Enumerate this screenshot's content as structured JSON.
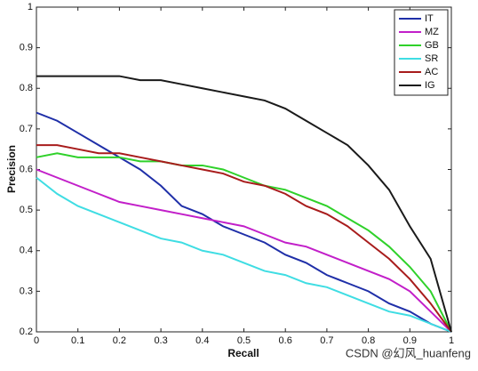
{
  "chart_data": {
    "type": "line",
    "x_label": "Recall",
    "y_label": "Precision",
    "x": [
      0,
      0.05,
      0.1,
      0.15,
      0.2,
      0.25,
      0.3,
      0.35,
      0.4,
      0.45,
      0.5,
      0.55,
      0.6,
      0.65,
      0.7,
      0.75,
      0.8,
      0.85,
      0.9,
      0.95,
      1
    ],
    "series": [
      {
        "name": "IT",
        "color": "#1f2fa8",
        "values": [
          0.74,
          0.72,
          0.69,
          0.66,
          0.63,
          0.6,
          0.56,
          0.51,
          0.49,
          0.46,
          0.44,
          0.42,
          0.39,
          0.37,
          0.34,
          0.32,
          0.3,
          0.27,
          0.25,
          0.22,
          0.2
        ]
      },
      {
        "name": "MZ",
        "color": "#c21fc9",
        "values": [
          0.6,
          0.58,
          0.56,
          0.54,
          0.52,
          0.51,
          0.5,
          0.49,
          0.48,
          0.47,
          0.46,
          0.44,
          0.42,
          0.41,
          0.39,
          0.37,
          0.35,
          0.33,
          0.3,
          0.25,
          0.2
        ]
      },
      {
        "name": "GB",
        "color": "#2fd12a",
        "values": [
          0.63,
          0.64,
          0.63,
          0.63,
          0.63,
          0.62,
          0.62,
          0.61,
          0.61,
          0.6,
          0.58,
          0.56,
          0.55,
          0.53,
          0.51,
          0.48,
          0.45,
          0.41,
          0.36,
          0.3,
          0.2
        ]
      },
      {
        "name": "SR",
        "color": "#3fdde3",
        "values": [
          0.58,
          0.54,
          0.51,
          0.49,
          0.47,
          0.45,
          0.43,
          0.42,
          0.4,
          0.39,
          0.37,
          0.35,
          0.34,
          0.32,
          0.31,
          0.29,
          0.27,
          0.25,
          0.24,
          0.22,
          0.2
        ]
      },
      {
        "name": "AC",
        "color": "#a81c1c",
        "values": [
          0.66,
          0.66,
          0.65,
          0.64,
          0.64,
          0.63,
          0.62,
          0.61,
          0.6,
          0.59,
          0.57,
          0.56,
          0.54,
          0.51,
          0.49,
          0.46,
          0.42,
          0.38,
          0.33,
          0.27,
          0.2
        ]
      },
      {
        "name": "IG",
        "color": "#1a1a1a",
        "values": [
          0.83,
          0.83,
          0.83,
          0.83,
          0.83,
          0.82,
          0.82,
          0.81,
          0.8,
          0.79,
          0.78,
          0.77,
          0.75,
          0.72,
          0.69,
          0.66,
          0.61,
          0.55,
          0.46,
          0.38,
          0.2
        ]
      }
    ],
    "xlim": [
      0,
      1
    ],
    "ylim": [
      0.2,
      1
    ],
    "xticks": [
      0,
      0.1,
      0.2,
      0.3,
      0.4,
      0.5,
      0.6,
      0.7,
      0.8,
      0.9,
      1
    ],
    "yticks": [
      0.2,
      0.3,
      0.4,
      0.5,
      0.6,
      0.7,
      0.8,
      0.9,
      1
    ],
    "legend": "upper right",
    "watermark": "CSDN @幻风_huanfeng"
  }
}
